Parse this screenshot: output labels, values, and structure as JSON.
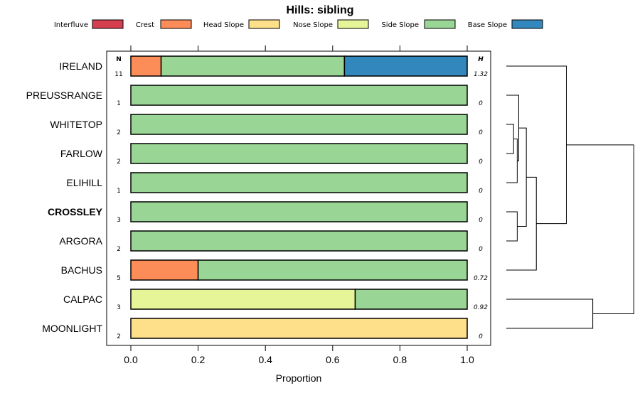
{
  "chart_data": {
    "type": "bar",
    "orientation": "horizontal",
    "stacked": true,
    "title": "Hills: sibling",
    "xlabel": "Proportion",
    "xlim": [
      0,
      1
    ],
    "xticks": [
      "0.0",
      "0.2",
      "0.4",
      "0.6",
      "0.8",
      "1.0"
    ],
    "xtick_values": [
      0,
      0.2,
      0.4,
      0.6,
      0.8,
      1.0
    ],
    "n_header": "N",
    "h_header": "H",
    "legend_position": "top",
    "legend": [
      {
        "name": "Interfluve",
        "color": "#d53e4f"
      },
      {
        "name": "Crest",
        "color": "#fc8d59"
      },
      {
        "name": "Head Slope",
        "color": "#fee08b"
      },
      {
        "name": "Nose Slope",
        "color": "#e6f598"
      },
      {
        "name": "Side Slope",
        "color": "#99d594"
      },
      {
        "name": "Base Slope",
        "color": "#3288bd"
      }
    ],
    "rows": [
      {
        "label": "IRELAND",
        "bold": false,
        "n": "11",
        "h": "1.32",
        "segments": [
          {
            "class": "Crest",
            "value": 0.09
          },
          {
            "class": "Side Slope",
            "value": 0.545
          },
          {
            "class": "Base Slope",
            "value": 0.365
          }
        ]
      },
      {
        "label": "PREUSSRANGE",
        "bold": false,
        "n": "1",
        "h": "0",
        "segments": [
          {
            "class": "Side Slope",
            "value": 1.0
          }
        ]
      },
      {
        "label": "WHITETOP",
        "bold": false,
        "n": "2",
        "h": "0",
        "segments": [
          {
            "class": "Side Slope",
            "value": 1.0
          }
        ]
      },
      {
        "label": "FARLOW",
        "bold": false,
        "n": "2",
        "h": "0",
        "segments": [
          {
            "class": "Side Slope",
            "value": 1.0
          }
        ]
      },
      {
        "label": "ELIHILL",
        "bold": false,
        "n": "1",
        "h": "0",
        "segments": [
          {
            "class": "Side Slope",
            "value": 1.0
          }
        ]
      },
      {
        "label": "CROSSLEY",
        "bold": true,
        "n": "3",
        "h": "0",
        "segments": [
          {
            "class": "Side Slope",
            "value": 1.0
          }
        ]
      },
      {
        "label": "ARGORA",
        "bold": false,
        "n": "2",
        "h": "0",
        "segments": [
          {
            "class": "Side Slope",
            "value": 1.0
          }
        ]
      },
      {
        "label": "BACHUS",
        "bold": false,
        "n": "5",
        "h": "0.72",
        "segments": [
          {
            "class": "Crest",
            "value": 0.2
          },
          {
            "class": "Side Slope",
            "value": 0.8
          }
        ]
      },
      {
        "label": "CALPAC",
        "bold": false,
        "n": "3",
        "h": "0.92",
        "segments": [
          {
            "class": "Nose Slope",
            "value": 0.667
          },
          {
            "class": "Side Slope",
            "value": 0.333
          }
        ]
      },
      {
        "label": "MOONLIGHT",
        "bold": false,
        "n": "2",
        "h": "0",
        "segments": [
          {
            "class": "Head Slope",
            "value": 1.0
          }
        ]
      }
    ],
    "dendrogram": {
      "merge_order": [
        "WHITETOP+FARLOW",
        "+ELIHILL",
        "CROSSLEY+ARGORA",
        "+PREUSSRANGE",
        "+BACHUS",
        "IRELAND+",
        "CALPAC+MOONLIGHT",
        "root"
      ],
      "merge_heights": [
        0.08,
        0.12,
        0.12,
        0.22,
        0.33,
        0.66,
        0.95,
        1.4
      ]
    }
  }
}
